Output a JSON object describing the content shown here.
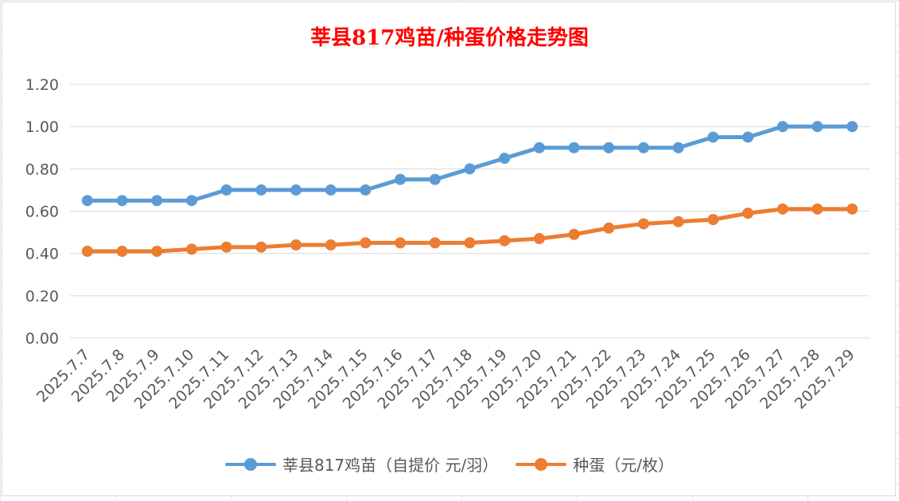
{
  "colors": {
    "title": "#ff0000",
    "series1": "#5b9bd5",
    "series2": "#ed7d31",
    "grid": "#d9d9d9",
    "text": "#595959"
  },
  "chart_data": {
    "type": "line",
    "title": "莘县817鸡苗/种蛋价格走势图",
    "xlabel": "",
    "ylabel": "",
    "ylim": [
      0,
      1.2
    ],
    "yticks": [
      "0.00",
      "0.20",
      "0.40",
      "0.60",
      "0.80",
      "1.00",
      "1.20"
    ],
    "grid": "horizontal",
    "legend_position": "bottom",
    "categories": [
      "2025.7.7",
      "2025.7.8",
      "2025.7.9",
      "2025.7.10",
      "2025.7.11",
      "2025.7.12",
      "2025.7.13",
      "2025.7.14",
      "2025.7.15",
      "2025.7.16",
      "2025.7.17",
      "2025.7.18",
      "2025.7.19",
      "2025.7.20",
      "2025.7.21",
      "2025.7.22",
      "2025.7.23",
      "2025.7.24",
      "2025.7.25",
      "2025.7.26",
      "2025.7.27",
      "2025.7.28",
      "2025.7.29"
    ],
    "series": [
      {
        "name": "莘县817鸡苗（自提价 元/羽）",
        "color": "#5b9bd5",
        "values": [
          0.65,
          0.65,
          0.65,
          0.65,
          0.7,
          0.7,
          0.7,
          0.7,
          0.7,
          0.75,
          0.75,
          0.8,
          0.85,
          0.9,
          0.9,
          0.9,
          0.9,
          0.9,
          0.95,
          0.95,
          1.0,
          1.0,
          1.0
        ]
      },
      {
        "name": "种蛋（元/枚）",
        "color": "#ed7d31",
        "values": [
          0.41,
          0.41,
          0.41,
          0.42,
          0.43,
          0.43,
          0.44,
          0.44,
          0.45,
          0.45,
          0.45,
          0.45,
          0.46,
          0.47,
          0.49,
          0.52,
          0.54,
          0.55,
          0.56,
          0.59,
          0.61,
          0.61,
          0.61
        ]
      }
    ]
  }
}
